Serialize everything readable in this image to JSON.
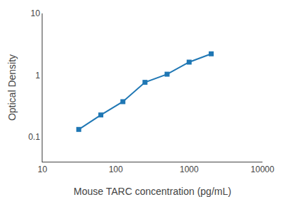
{
  "chart_data": {
    "type": "line",
    "x": [
      31.25,
      62.5,
      125,
      250,
      500,
      1000,
      2000
    ],
    "values": [
      0.133,
      0.228,
      0.374,
      0.768,
      1.04,
      1.63,
      2.22
    ],
    "xlabel": "Mouse TARC concentration (pg/mL)",
    "ylabel": "Optical Density",
    "xlim": [
      10,
      10000
    ],
    "ylim": [
      0.04,
      10
    ],
    "xticks": [
      10,
      100,
      1000,
      10000
    ],
    "yticks": [
      0.1,
      1,
      10
    ],
    "log": true,
    "grid": false,
    "marker": "square"
  }
}
